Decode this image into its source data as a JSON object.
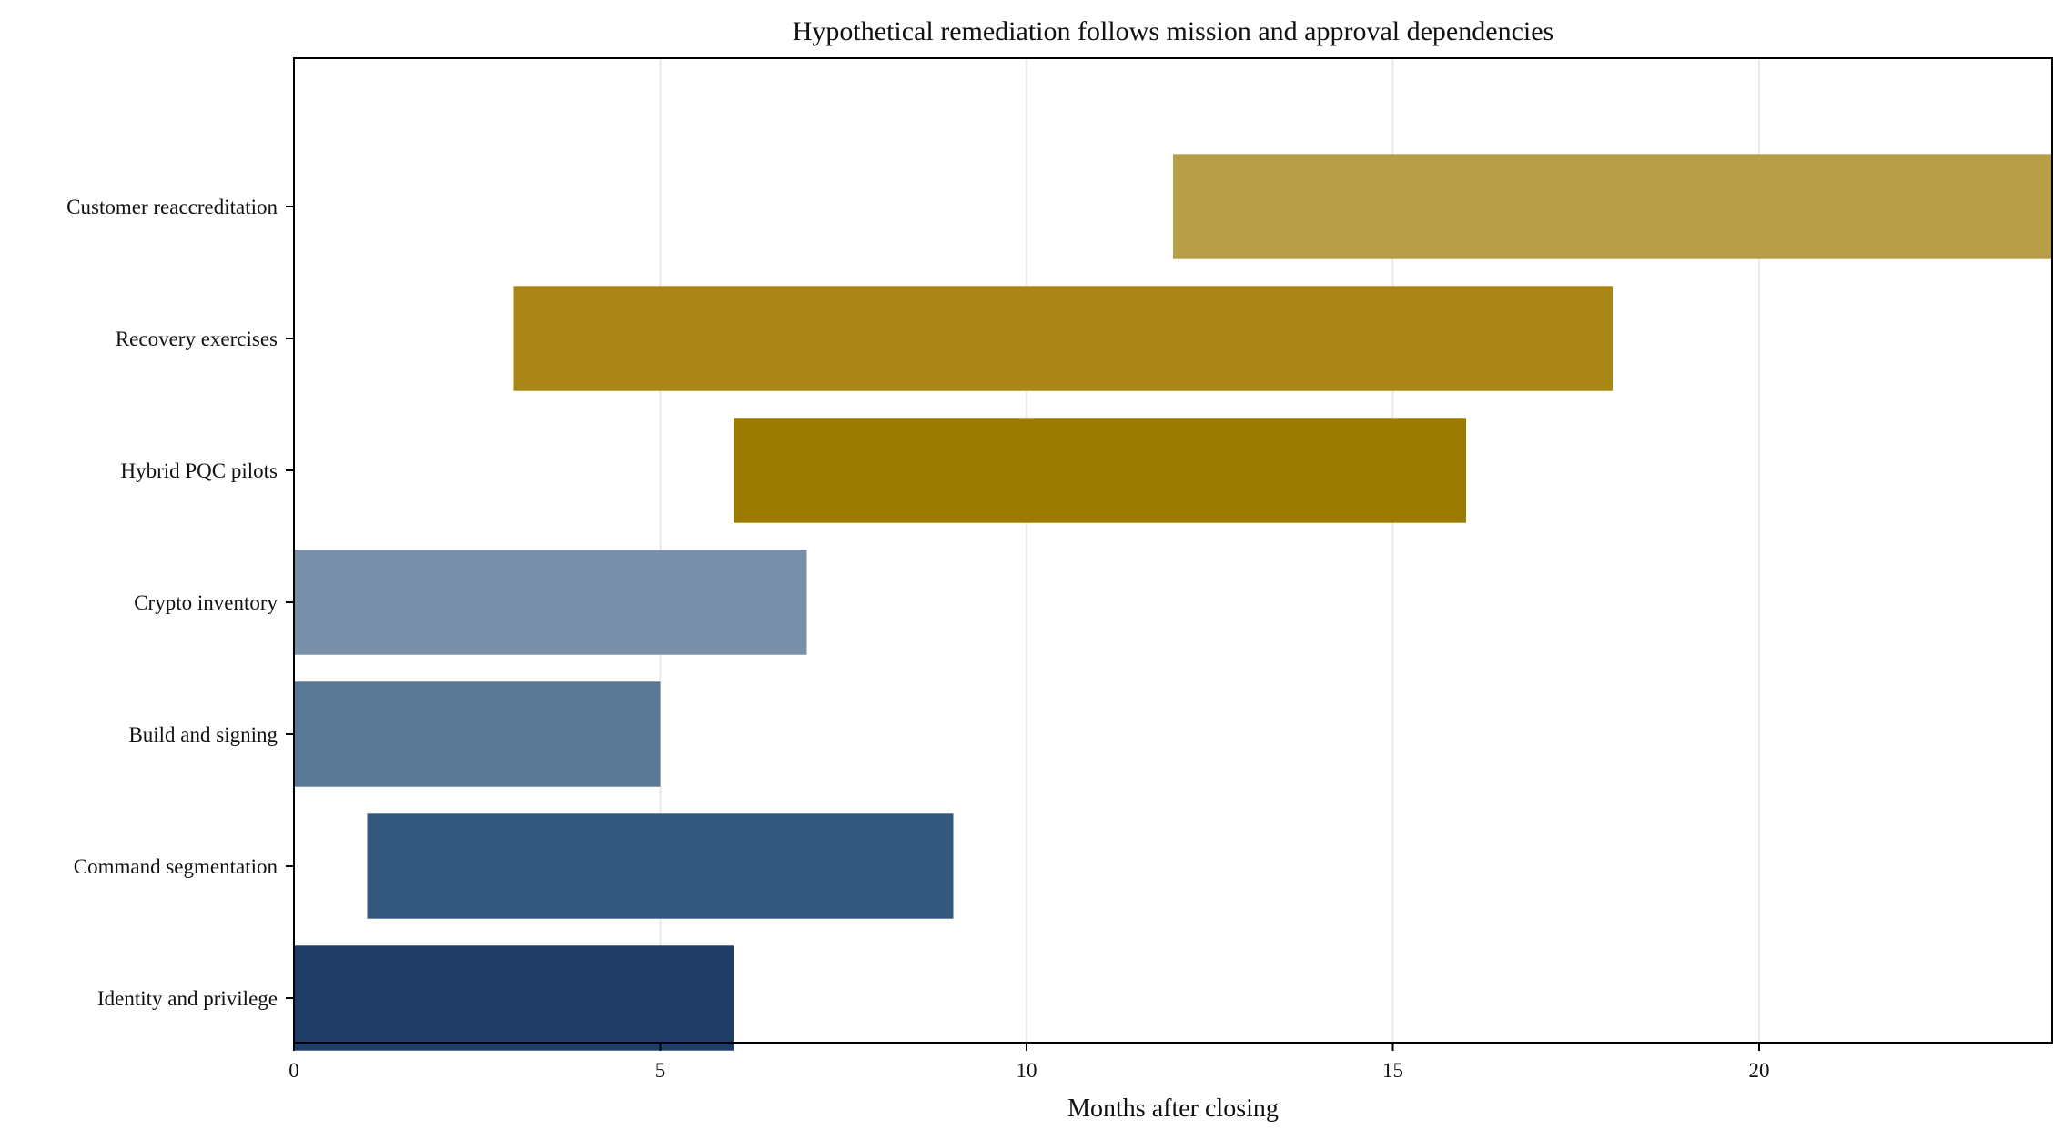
{
  "chart_data": {
    "type": "bar",
    "orientation": "horizontal",
    "title": "Hypothetical remediation follows mission and approval dependencies",
    "xlabel": "Months after closing",
    "ylabel": "",
    "xlim": [
      0,
      24
    ],
    "xticks": [
      0,
      5,
      10,
      15,
      20
    ],
    "grid": "x",
    "legend": "none",
    "tasks": [
      {
        "label": "Identity and privilege",
        "start": 0,
        "end": 6,
        "color": "#1f3d66"
      },
      {
        "label": "Command segmentation",
        "start": 1,
        "end": 9,
        "color": "#34587d"
      },
      {
        "label": "Build and signing",
        "start": 0,
        "end": 5,
        "color": "#587895"
      },
      {
        "label": "Crypto inventory",
        "start": 0,
        "end": 7,
        "color": "#7a8fa9"
      },
      {
        "label": "Hybrid PQC pilots",
        "start": 6,
        "end": 16,
        "color": "#9a7b00"
      },
      {
        "label": "Recovery exercises",
        "start": 3,
        "end": 18,
        "color": "#a98615"
      },
      {
        "label": "Customer reaccreditation",
        "start": 12,
        "end": 24,
        "color": "#b89f47"
      }
    ]
  }
}
